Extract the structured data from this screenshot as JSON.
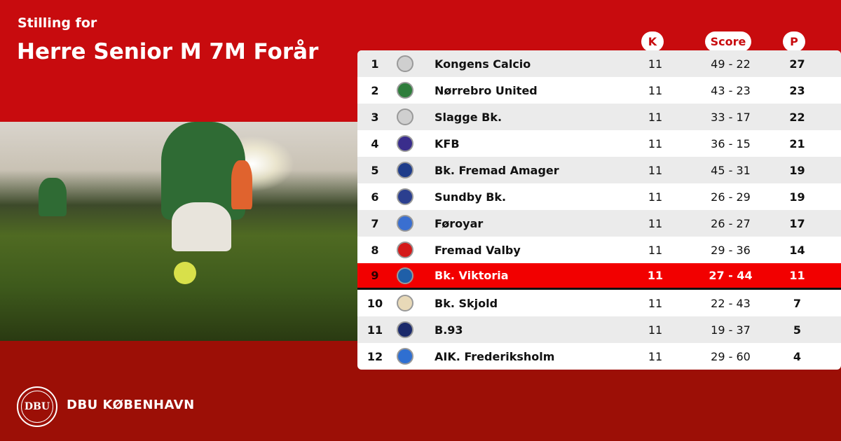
{
  "header": {
    "subtitle": "Stilling for",
    "title": "Herre Senior M 7M Forår"
  },
  "columns": {
    "k": "K",
    "score": "Score",
    "p": "P"
  },
  "highlight_color": "#f20000",
  "rows": [
    {
      "pos": "1",
      "team": "Kongens Calcio",
      "k": "11",
      "score": "49 - 22",
      "p": "27",
      "logo": "#cfcfcf"
    },
    {
      "pos": "2",
      "team": "Nørrebro United",
      "k": "11",
      "score": "43 - 23",
      "p": "23",
      "logo": "#2e7d3b"
    },
    {
      "pos": "3",
      "team": "Slagge Bk.",
      "k": "11",
      "score": "33 - 17",
      "p": "22",
      "logo": "#cfcfcf"
    },
    {
      "pos": "4",
      "team": "KFB",
      "k": "11",
      "score": "36 - 15",
      "p": "21",
      "logo": "#3a2d8c"
    },
    {
      "pos": "5",
      "team": "Bk. Fremad Amager",
      "k": "11",
      "score": "45 - 31",
      "p": "19",
      "logo": "#1e3c8a"
    },
    {
      "pos": "6",
      "team": "Sundby Bk.",
      "k": "11",
      "score": "26 - 29",
      "p": "19",
      "logo": "#2b3f8f"
    },
    {
      "pos": "7",
      "team": "Føroyar",
      "k": "11",
      "score": "26 - 27",
      "p": "17",
      "logo": "#3a6fd0"
    },
    {
      "pos": "8",
      "team": "Fremad Valby",
      "k": "11",
      "score": "29 - 36",
      "p": "14",
      "logo": "#d41a1a"
    },
    {
      "pos": "9",
      "team": "Bk. Viktoria",
      "k": "11",
      "score": "27 - 44",
      "p": "11",
      "logo": "#1f5fa8",
      "highlight": true
    },
    {
      "pos": "10",
      "team": "Bk. Skjold",
      "k": "11",
      "score": "22 - 43",
      "p": "7",
      "logo": "#e8d9b8"
    },
    {
      "pos": "11",
      "team": "B.93",
      "k": "11",
      "score": "19 - 37",
      "p": "5",
      "logo": "#1b2a6b"
    },
    {
      "pos": "12",
      "team": "AIK. Frederiksholm",
      "k": "11",
      "score": "29 - 60",
      "p": "4",
      "logo": "#2f6fd1"
    }
  ],
  "footer": {
    "brand": "DBU KØBENHAVN",
    "seal_text": "DBU",
    "seal_ring": "DANSK BOLDSPIL-UNION 1889"
  }
}
